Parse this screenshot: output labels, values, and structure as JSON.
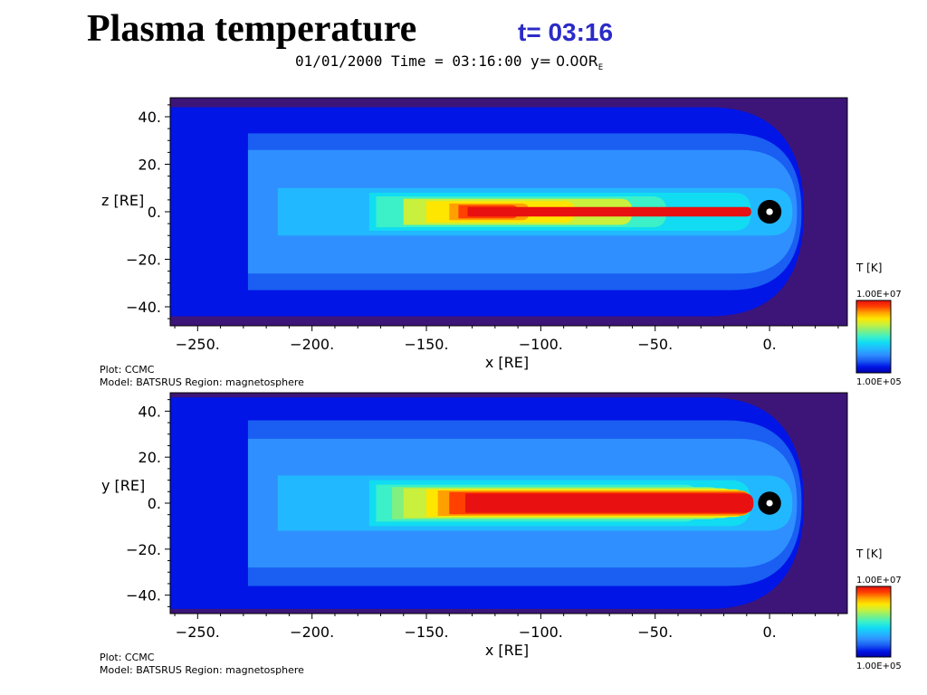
{
  "slide": {
    "title": "Plasma temperature",
    "time_badge": "t= 03:16"
  },
  "header": {
    "date_time": "01/01/2000 Time = 03:16:00",
    "slice_label": "y= 0.00R",
    "slice_sub": "E"
  },
  "colors": {
    "background": "#3d1578",
    "colormap": [
      "#0000aa",
      "#0015e6",
      "#1a5ef2",
      "#2f8fff",
      "#22b8ff",
      "#11dcf2",
      "#3cf0c8",
      "#80f080",
      "#c8f03c",
      "#ffe600",
      "#ffa000",
      "#ff4000",
      "#e81010"
    ],
    "earth": "#000000"
  },
  "chart_data": [
    {
      "type": "heatmap",
      "title": "",
      "xlabel": "x [RE]",
      "ylabel": "z [RE]",
      "xlim": [
        -262,
        34
      ],
      "ylim": [
        -48,
        48
      ],
      "xticks": [
        -250,
        -200,
        -150,
        -100,
        -50,
        0
      ],
      "xtick_labels": [
        "−250.",
        "−200.",
        "−150.",
        "−100.",
        "−50.",
        "0."
      ],
      "yticks": [
        40,
        20,
        0,
        -20,
        -40
      ],
      "ytick_labels": [
        "40.",
        "20.",
        "0.",
        "−20.",
        "−40."
      ],
      "colorbar": {
        "label": "T [K]",
        "max": "1.00E+07",
        "min": "1.00E+05"
      },
      "footer": {
        "plot": "Plot: CCMC",
        "model": "Model: BATSRUS   Region: magnetosphere"
      },
      "variable": "Plasma temperature",
      "units": "K",
      "value_range": [
        100000,
        10000000
      ],
      "layers": [
        {
          "level": 1,
          "x_tail": -265,
          "half_width": 44,
          "nose_x": 15
        },
        {
          "level": 2,
          "x_tail": -228,
          "half_width": 33,
          "nose_x": 14
        },
        {
          "level": 3,
          "x_tail": -228,
          "half_width": 26,
          "nose_x": 12
        },
        {
          "level": 4,
          "x_tail": -215,
          "half_width": 10,
          "nose_x": 10
        },
        {
          "level": 5,
          "x_tail": -175,
          "half_width": 8,
          "nose_x": -8
        },
        {
          "level": 6,
          "x_tail": -172,
          "half_width": 6.5,
          "nose_x": -45
        },
        {
          "level": 8,
          "x_tail": -160,
          "half_width": 5.5,
          "nose_x": -60
        },
        {
          "level": 9,
          "x_tail": -150,
          "half_width": 4.5,
          "nose_x": -85
        },
        {
          "level": 10,
          "x_tail": -140,
          "half_width": 3.5,
          "nose_x": -105
        },
        {
          "level": 11,
          "x_tail": -136,
          "half_width": 2.8,
          "nose_x": -110
        },
        {
          "level": 12,
          "x_tail": -132,
          "half_width": 2.0,
          "nose_x": -8
        }
      ],
      "earth": {
        "x": 0,
        "y": 0,
        "radius": 5
      }
    },
    {
      "type": "heatmap",
      "title": "",
      "xlabel": "x [RE]",
      "ylabel": "y [RE]",
      "xlim": [
        -262,
        34
      ],
      "ylim": [
        -48,
        48
      ],
      "xticks": [
        -250,
        -200,
        -150,
        -100,
        -50,
        0
      ],
      "xtick_labels": [
        "−250.",
        "−200.",
        "−150.",
        "−100.",
        "−50.",
        "0."
      ],
      "yticks": [
        40,
        20,
        0,
        -20,
        -40
      ],
      "ytick_labels": [
        "40.",
        "20.",
        "0.",
        "−20.",
        "−40."
      ],
      "colorbar": {
        "label": "T [K]",
        "max": "1.00E+07",
        "min": "1.00E+05"
      },
      "footer": {
        "plot": "Plot: CCMC",
        "model": "Model: BATSRUS   Region: magnetosphere"
      },
      "variable": "Plasma temperature",
      "units": "K",
      "value_range": [
        100000,
        10000000
      ],
      "layers": [
        {
          "level": 1,
          "x_tail": -265,
          "half_width": 46,
          "nose_x": 15
        },
        {
          "level": 2,
          "x_tail": -228,
          "half_width": 36,
          "nose_x": 14
        },
        {
          "level": 3,
          "x_tail": -228,
          "half_width": 28,
          "nose_x": 12
        },
        {
          "level": 4,
          "x_tail": -215,
          "half_width": 12,
          "nose_x": 10
        },
        {
          "level": 5,
          "x_tail": -175,
          "half_width": 10,
          "nose_x": -8
        },
        {
          "level": 6,
          "x_tail": -172,
          "half_width": 8,
          "nose_x": -30
        },
        {
          "level": 7,
          "x_tail": -165,
          "half_width": 7,
          "nose_x": -20
        },
        {
          "level": 8,
          "x_tail": -160,
          "half_width": 6.5,
          "nose_x": -15
        },
        {
          "level": 9,
          "x_tail": -150,
          "half_width": 6,
          "nose_x": -10
        },
        {
          "level": 10,
          "x_tail": -145,
          "half_width": 5.5,
          "nose_x": -8
        },
        {
          "level": 11,
          "x_tail": -140,
          "half_width": 4.8,
          "nose_x": -8
        },
        {
          "level": 12,
          "x_tail": -133,
          "half_width": 4.2,
          "nose_x": -7
        }
      ],
      "earth": {
        "x": 0,
        "y": 0,
        "radius": 5
      }
    }
  ]
}
